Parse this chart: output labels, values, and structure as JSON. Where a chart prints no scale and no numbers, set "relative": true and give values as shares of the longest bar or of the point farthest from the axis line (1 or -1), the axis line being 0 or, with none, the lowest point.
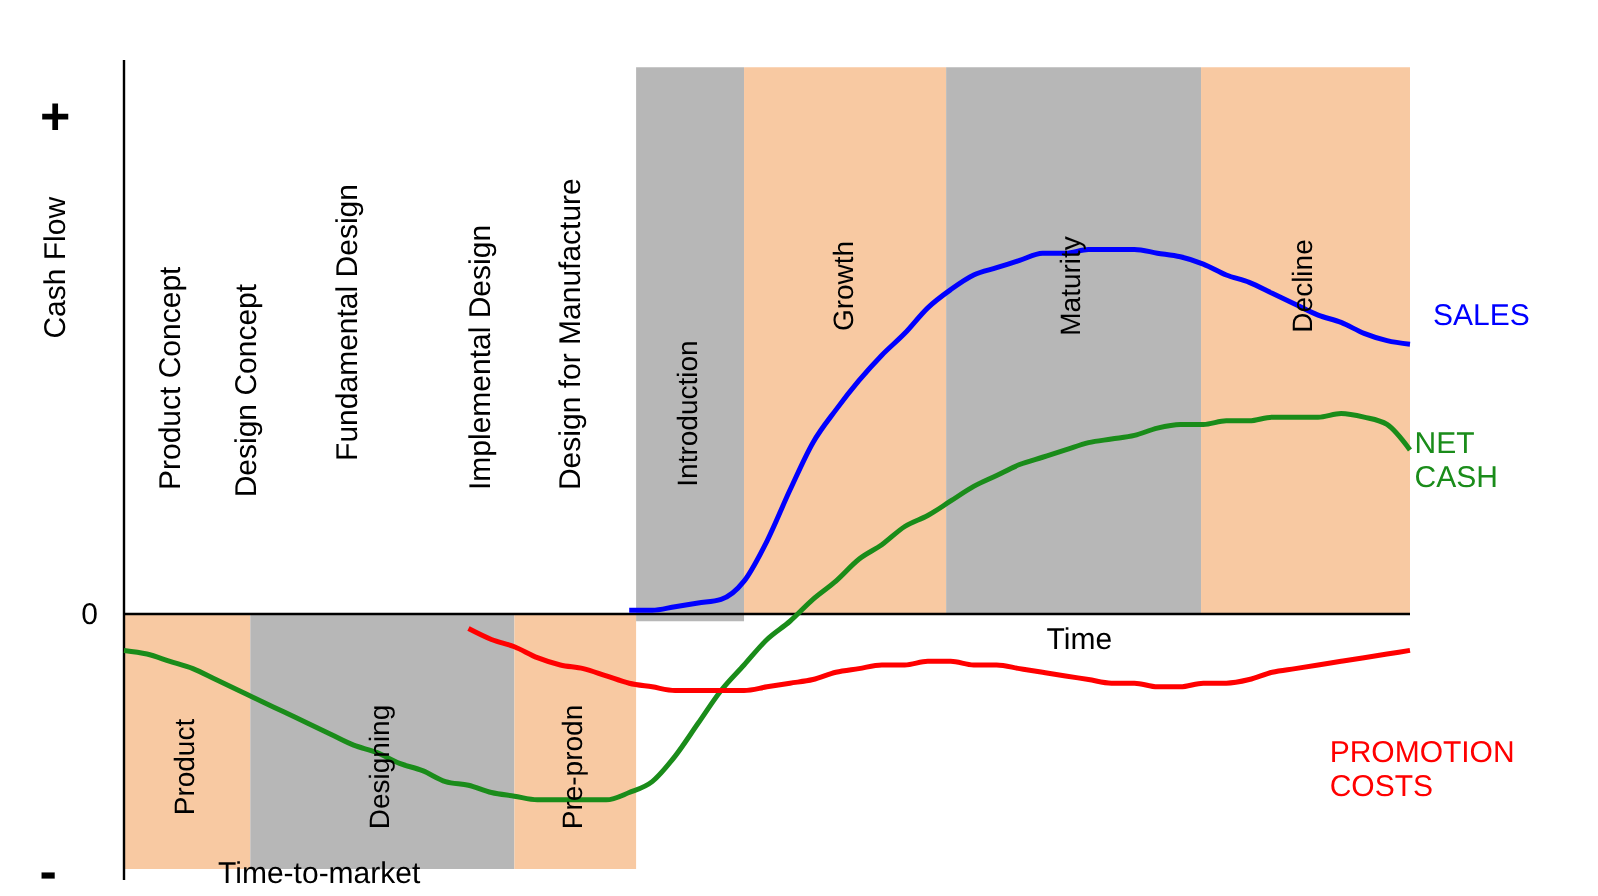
{
  "chart_data": {
    "type": "line",
    "relative": true,
    "xlabel": "Time",
    "ylabel": "Cash Flow",
    "categories": [
      null,
      null,
      null,
      null,
      null,
      null,
      null,
      null,
      null,
      null,
      null,
      null,
      null,
      null,
      null,
      null,
      null,
      null,
      null,
      null,
      null,
      null,
      null,
      null,
      null,
      null,
      null,
      null,
      null,
      null,
      null,
      null,
      null,
      null,
      null,
      null,
      null,
      null,
      null,
      null,
      null,
      null,
      null,
      null,
      null,
      null,
      null,
      null,
      null,
      null,
      null,
      null,
      null,
      null,
      null,
      null,
      null
    ],
    "series": [
      {
        "name": "SALES",
        "color": "#0000ff",
        "values": [
          null,
          null,
          null,
          null,
          null,
          null,
          null,
          null,
          null,
          null,
          null,
          null,
          null,
          null,
          null,
          null,
          null,
          null,
          null,
          null,
          null,
          null,
          0.01,
          0.01,
          0.02,
          0.03,
          0.04,
          0.09,
          0.2,
          0.34,
          0.47,
          0.56,
          0.64,
          0.71,
          0.77,
          0.84,
          0.89,
          0.93,
          0.95,
          0.97,
          0.99,
          0.99,
          1.0,
          1.0,
          1.0,
          0.99,
          0.98,
          0.96,
          0.93,
          0.91,
          0.88,
          0.85,
          0.82,
          0.8,
          0.77,
          0.75,
          0.74
        ]
      },
      {
        "name": "NET CASH",
        "color": "#1a8c1a",
        "values": [
          -0.1,
          -0.11,
          -0.13,
          -0.15,
          -0.18,
          -0.21,
          -0.24,
          -0.27,
          -0.3,
          -0.33,
          -0.36,
          -0.38,
          -0.41,
          -0.43,
          -0.46,
          -0.47,
          -0.49,
          -0.5,
          -0.51,
          -0.51,
          -0.51,
          -0.51,
          -0.49,
          -0.46,
          -0.39,
          -0.3,
          -0.21,
          -0.14,
          -0.07,
          -0.02,
          0.04,
          0.09,
          0.15,
          0.19,
          0.24,
          0.27,
          0.31,
          0.35,
          0.38,
          0.41,
          0.43,
          0.45,
          0.47,
          0.48,
          0.49,
          0.51,
          0.52,
          0.52,
          0.53,
          0.53,
          0.54,
          0.54,
          0.54,
          0.55,
          0.54,
          0.52,
          0.45
        ]
      },
      {
        "name": "PROMOTION COSTS",
        "color": "#ff0000",
        "values": [
          null,
          null,
          null,
          null,
          null,
          null,
          null,
          null,
          null,
          null,
          null,
          null,
          null,
          null,
          null,
          -0.04,
          -0.07,
          -0.09,
          -0.12,
          -0.14,
          -0.15,
          -0.17,
          -0.19,
          -0.2,
          -0.21,
          -0.21,
          -0.21,
          -0.21,
          -0.2,
          -0.19,
          -0.18,
          -0.16,
          -0.15,
          -0.14,
          -0.14,
          -0.13,
          -0.13,
          -0.14,
          -0.14,
          -0.15,
          -0.16,
          -0.17,
          -0.18,
          -0.19,
          -0.19,
          -0.2,
          -0.2,
          -0.19,
          -0.19,
          -0.18,
          -0.16,
          -0.15,
          -0.14,
          -0.13,
          -0.12,
          -0.11,
          -0.1
        ]
      }
    ],
    "annotations": [
      "+",
      "0",
      "-",
      "Product Concept",
      "Design Concept",
      "Fundamental Design",
      "Implemental Design",
      "Design for Manufacture",
      "Time-to-market",
      "Product",
      "Designing",
      "Pre-prodn",
      "Introduction",
      "Growth",
      "Maturity",
      "Decline"
    ]
  }
}
